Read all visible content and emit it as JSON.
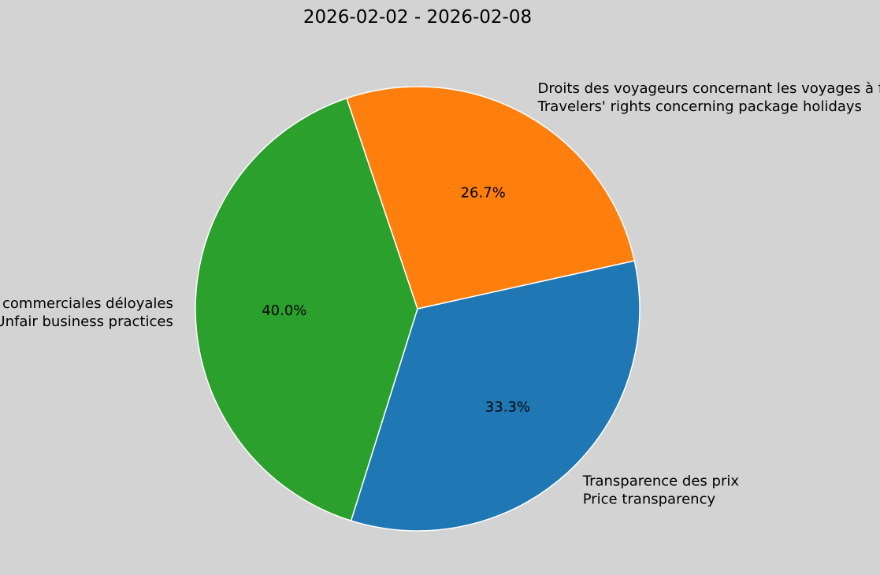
{
  "chart_data": {
    "type": "pie",
    "title": "2026-02-02 - 2026-02-08",
    "slices": [
      {
        "label_fr": "Pratiques commerciales déloyales",
        "label_en": "Unfair business practices",
        "value": 40.0,
        "pct_label": "40.0%",
        "color": "#2ca02c"
      },
      {
        "label_fr": "Transparence des prix",
        "label_en": "Price transparency",
        "value": 33.3,
        "pct_label": "33.3%",
        "color": "#1f77b4"
      },
      {
        "label_fr": "Droits des voyageurs concernant les voyages à forfait",
        "label_en": "Travelers' rights concerning package holidays",
        "value": 26.7,
        "pct_label": "26.7%",
        "color": "#ff7f0e"
      }
    ],
    "start_angle_deg": 108.6,
    "direction": "counterclockwise",
    "wedge_edge_color": "#ffffff",
    "background_color": "#d3d3d3"
  }
}
